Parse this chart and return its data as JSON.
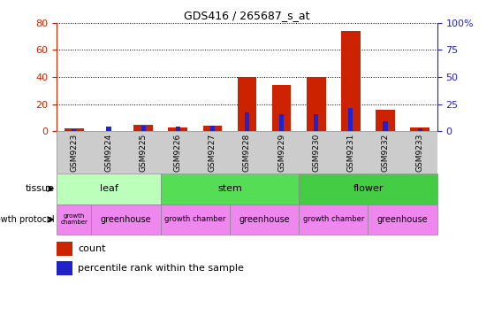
{
  "title": "GDS416 / 265687_s_at",
  "samples": [
    "GSM9223",
    "GSM9224",
    "GSM9225",
    "GSM9226",
    "GSM9227",
    "GSM9228",
    "GSM9229",
    "GSM9230",
    "GSM9231",
    "GSM9232",
    "GSM9233"
  ],
  "count_values": [
    2,
    0,
    5,
    3,
    4,
    40,
    34,
    40,
    74,
    16,
    3
  ],
  "percentile_values": [
    2,
    4,
    5,
    4,
    5,
    17,
    16,
    16,
    21,
    9,
    3
  ],
  "left_ylim": [
    0,
    80
  ],
  "right_ylim": [
    0,
    100
  ],
  "left_yticks": [
    0,
    20,
    40,
    60,
    80
  ],
  "right_yticks": [
    0,
    25,
    50,
    75,
    100
  ],
  "right_yticklabels": [
    "0",
    "25",
    "50",
    "75",
    "100%"
  ],
  "bar_color_count": "#cc2200",
  "bar_color_percentile": "#2222cc",
  "axis_label_color_left": "#cc2200",
  "axis_label_color_right": "#2222cc",
  "tissue_groups": [
    {
      "label": "leaf",
      "start": 0,
      "end": 3,
      "color": "#bbffbb"
    },
    {
      "label": "stem",
      "start": 3,
      "end": 7,
      "color": "#44cc44"
    },
    {
      "label": "flower",
      "start": 7,
      "end": 11,
      "color": "#44cc44"
    }
  ],
  "gp_groups": [
    {
      "label": "growth\nchamber",
      "start": 0,
      "end": 1,
      "color": "#ee88ee",
      "fontsize": 5
    },
    {
      "label": "greenhouse",
      "start": 1,
      "end": 3,
      "color": "#ee88ee",
      "fontsize": 7
    },
    {
      "label": "growth chamber",
      "start": 3,
      "end": 5,
      "color": "#ee88ee",
      "fontsize": 6
    },
    {
      "label": "greenhouse",
      "start": 5,
      "end": 7,
      "color": "#ee88ee",
      "fontsize": 7
    },
    {
      "label": "growth chamber",
      "start": 7,
      "end": 9,
      "color": "#ee88ee",
      "fontsize": 6
    },
    {
      "label": "greenhouse",
      "start": 9,
      "end": 11,
      "color": "#ee88ee",
      "fontsize": 7
    }
  ],
  "xticklabel_bg": "#cccccc",
  "plot_bg": "#ffffff",
  "grid_color": "#000000",
  "legend_count_label": "count",
  "legend_pct_label": "percentile rank within the sample",
  "tissue_label": "tissue",
  "gp_label": "growth protocol"
}
